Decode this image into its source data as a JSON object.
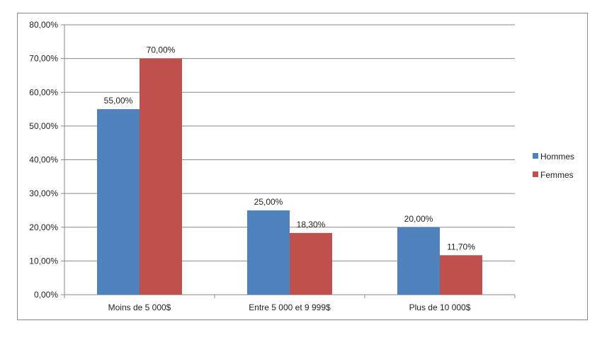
{
  "chart_data": {
    "type": "bar",
    "categories": [
      "Moins de 5 000$",
      "Entre 5 000 et 9 999$",
      "Plus de 10 000$"
    ],
    "series": [
      {
        "name": "Hommes",
        "values": [
          55.0,
          25.0,
          20.0
        ],
        "labels": [
          "55,00%",
          "25,00%",
          "20,00%"
        ],
        "color": "#4F81BD"
      },
      {
        "name": "Femmes",
        "values": [
          70.0,
          18.3,
          11.7
        ],
        "labels": [
          "70,00%",
          "18,30%",
          "11,70%"
        ],
        "color": "#C0504D"
      }
    ],
    "yticks": [
      "0,00%",
      "10,00%",
      "20,00%",
      "30,00%",
      "40,00%",
      "50,00%",
      "60,00%",
      "70,00%",
      "80,00%"
    ],
    "ylim": [
      0,
      80
    ],
    "grid": true,
    "legend_position": "right",
    "title": "",
    "xlabel": "",
    "ylabel": ""
  }
}
